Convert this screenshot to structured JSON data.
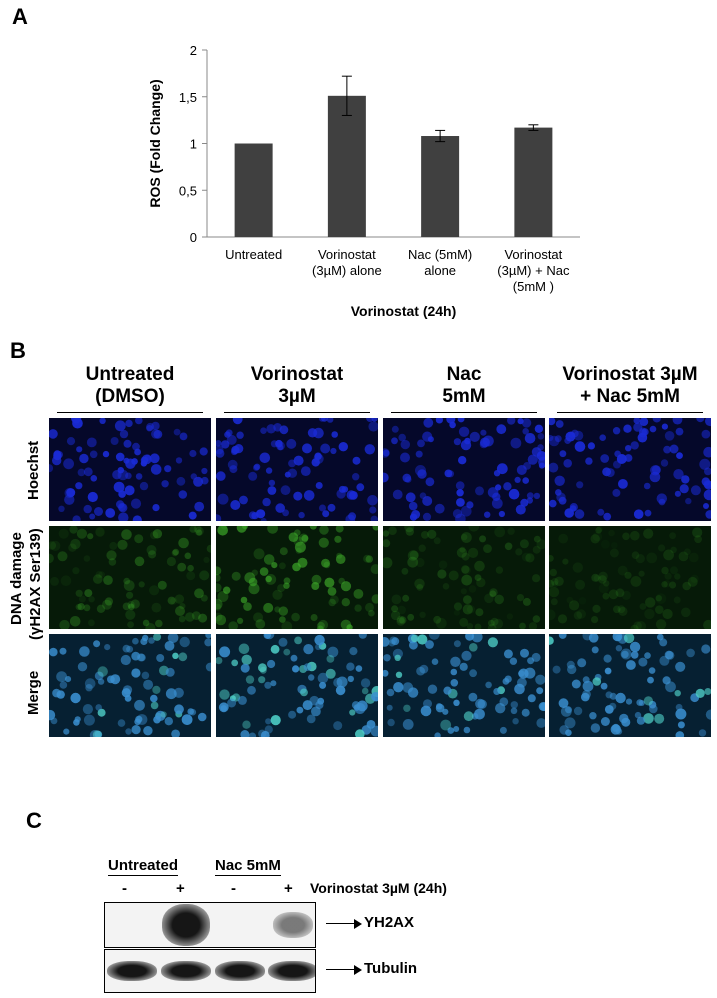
{
  "figure": {
    "panel_a": "A",
    "panel_b": "B",
    "panel_c": "C"
  },
  "chart_data": {
    "type": "bar",
    "categories": [
      [
        "Untreated"
      ],
      [
        "Vorinostat",
        "(3µM) alone"
      ],
      [
        "Nac (5mM)",
        "alone"
      ],
      [
        "Vorinostat",
        "(3µM) + Nac",
        "(5mM )"
      ]
    ],
    "values": [
      1.0,
      1.51,
      1.08,
      1.17
    ],
    "errors": [
      0.0,
      0.21,
      0.06,
      0.03
    ],
    "ylabel": "ROS (Fold Change)",
    "xlabel": "Vorinostat (24h)",
    "ylim": [
      0,
      2
    ],
    "yticks": [
      0,
      0.5,
      1,
      1.5,
      2
    ],
    "ytick_labels": [
      "0",
      "0,5",
      "1",
      "1,5",
      "2"
    ],
    "bar_color": "#404040",
    "grid": false
  },
  "microscopy": {
    "columns": [
      [
        "Untreated",
        "(DMSO)"
      ],
      [
        "Vorinostat",
        "3µM"
      ],
      [
        "Nac",
        "5mM"
      ],
      [
        "Vorinostat 3µM",
        "+ Nac 5mM"
      ]
    ],
    "rows": [
      "Hoechst",
      "DNA damage",
      "(γH2AX Ser139)",
      "Merge"
    ],
    "channel_colors": {
      "hoechst": "#1a2bd6",
      "gh2ax": "#3fae2a",
      "merge": "#3a8fd0"
    }
  },
  "western": {
    "group_labels": [
      "Untreated",
      "Nac 5mM"
    ],
    "lanes": [
      "-",
      "+",
      "-",
      "+"
    ],
    "treatment": "Vorinostat 3µM (24h)",
    "bands": [
      {
        "label": "YH2AX",
        "intensity": [
          0.0,
          1.0,
          0.0,
          0.55
        ]
      },
      {
        "label": "Tubulin",
        "intensity": [
          1.0,
          1.0,
          1.0,
          1.0
        ]
      }
    ]
  }
}
